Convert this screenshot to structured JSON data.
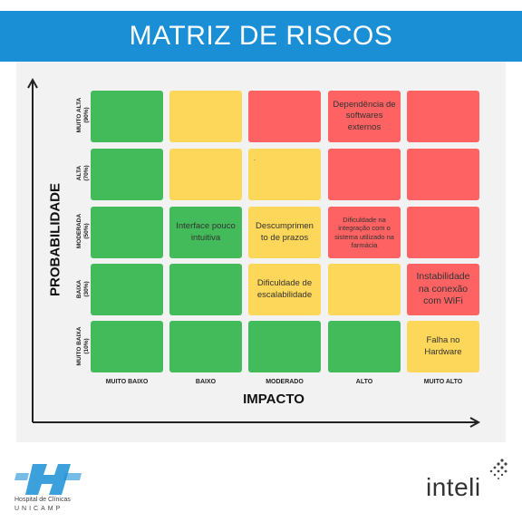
{
  "title": "MATRIZ DE RISCOS",
  "axis": {
    "y_title": "PROBABILIDADE",
    "x_title": "IMPACTO"
  },
  "rows": [
    {
      "name": "MUITO ALTA",
      "pct": "(90%)"
    },
    {
      "name": "ALTA",
      "pct": "(70%)"
    },
    {
      "name": "MODERADA",
      "pct": "(50%)"
    },
    {
      "name": "BAIXA",
      "pct": "(30%)"
    },
    {
      "name": "MUITO BAIXA",
      "pct": "(10%)"
    }
  ],
  "columns": [
    "MUITO BAIXO",
    "BAIXO",
    "MODERADO",
    "ALTO",
    "MUITO ALTO"
  ],
  "cells": {
    "r0c3": "Dependência de softwares externos",
    "r1c2": ".",
    "r2c1": "Interface pouco intuitiva",
    "r2c2": "Descumprimen to de prazos",
    "r2c3": "Dificuldade na integração com o sistema utilizado na farmácia",
    "r3c2": "Dificuldade de escalabilidade",
    "r3c4": "Instabilidade na conexão com WiFi",
    "r4c4": "Falha no Hardware"
  },
  "colors": {
    "green": "#44bb5a",
    "yellow": "#fdd75a",
    "red": "#fe6262",
    "title_bar": "#1a8fd6"
  },
  "logos": {
    "left_line1": "Hospital de Clínicas",
    "left_line2": "UNICAMP",
    "right": "inteli"
  }
}
